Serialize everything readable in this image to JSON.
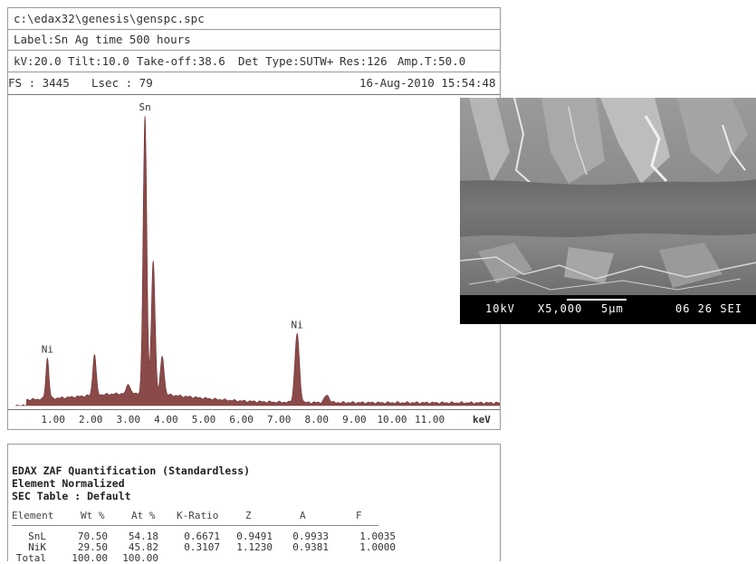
{
  "header": {
    "path": "c:\\edax32\\genesis\\genspc.spc",
    "label": "Label:Sn Ag time 500 hours",
    "kv": "kV:20.0",
    "tilt": "Tilt:10.0",
    "takeoff": "Take-off:38.6",
    "det": "Det Type:SUTW+",
    "res": "Res:126",
    "amp": "Amp.T:50.0",
    "fs": "FS : 3445",
    "lsec": "Lsec : 79",
    "date": "16-Aug-2010 15:54:48"
  },
  "chart_data": {
    "type": "area",
    "x_unit": "keV",
    "xlim": [
      0.0,
      13.0
    ],
    "ylim": [
      0,
      3445
    ],
    "x_ticks": [
      "1.00",
      "2.00",
      "3.00",
      "4.00",
      "5.00",
      "6.00",
      "7.00",
      "8.00",
      "9.00",
      "10.00",
      "11.00"
    ],
    "fill_color": "#8b4a4a",
    "peaks": [
      {
        "energy": 0.85,
        "counts": 540,
        "label": "Ni"
      },
      {
        "energy": 2.1,
        "counts": 590
      },
      {
        "energy": 3.0,
        "counts": 250
      },
      {
        "energy": 3.44,
        "counts": 3300,
        "label": "Sn"
      },
      {
        "energy": 3.66,
        "counts": 1650
      },
      {
        "energy": 3.9,
        "counts": 560
      },
      {
        "energy": 4.13,
        "counts": 120
      },
      {
        "energy": 7.48,
        "counts": 820,
        "label": "Ni"
      },
      {
        "energy": 8.27,
        "counts": 120
      }
    ]
  },
  "sem_image": {
    "kv": "10kV",
    "mag": "X5,000",
    "scale": "5µm",
    "id": "06 26 SEI"
  },
  "quant": {
    "title1": "EDAX ZAF Quantification (Standardless)",
    "title2": "Element Normalized",
    "title3": "SEC Table : Default",
    "headers": [
      "Element",
      "Wt %",
      "At %",
      "K-Ratio",
      "Z",
      "A",
      "F"
    ],
    "rows": [
      [
        "SnL",
        "70.50",
        "54.18",
        "0.6671",
        "0.9491",
        "0.9933",
        "1.0035"
      ],
      [
        "NiK",
        "29.50",
        "45.82",
        "0.3107",
        "1.1230",
        "0.9381",
        "1.0000"
      ],
      [
        "Total",
        "100.00",
        "100.00",
        "",
        "",
        "",
        ""
      ]
    ]
  }
}
